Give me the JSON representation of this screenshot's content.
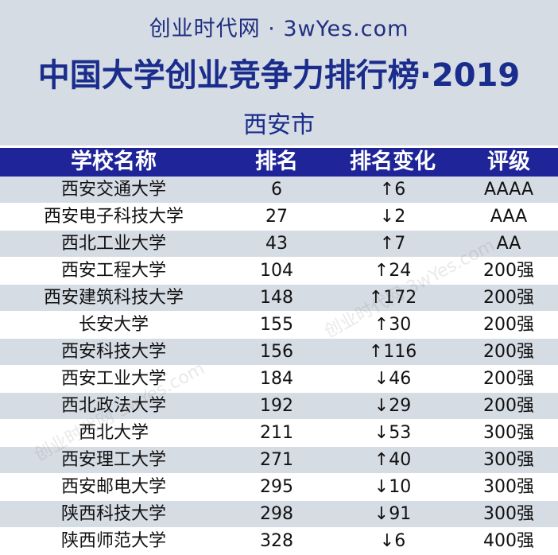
{
  "header": {
    "site": "创业时代网 · 3wYes.com",
    "title": "中国大学创业竞争力排行榜·2019",
    "city": "西安市"
  },
  "table": {
    "columns": [
      "学校名称",
      "排名",
      "排名变化",
      "评级"
    ],
    "rows": [
      {
        "name": "西安交通大学",
        "rank": "6",
        "change": "↑6",
        "grade": "AAAA"
      },
      {
        "name": "西安电子科技大学",
        "rank": "27",
        "change": "↓2",
        "grade": "AAA"
      },
      {
        "name": "西北工业大学",
        "rank": "43",
        "change": "↑7",
        "grade": "AA"
      },
      {
        "name": "西安工程大学",
        "rank": "104",
        "change": "↑24",
        "grade": "200强"
      },
      {
        "name": "西安建筑科技大学",
        "rank": "148",
        "change": "↑172",
        "grade": "200强"
      },
      {
        "name": "长安大学",
        "rank": "155",
        "change": "↑30",
        "grade": "200强"
      },
      {
        "name": "西安科技大学",
        "rank": "156",
        "change": "↑116",
        "grade": "200强"
      },
      {
        "name": "西安工业大学",
        "rank": "184",
        "change": "↓46",
        "grade": "200强"
      },
      {
        "name": "西北政法大学",
        "rank": "192",
        "change": "↓29",
        "grade": "200强"
      },
      {
        "name": "西北大学",
        "rank": "211",
        "change": "↓53",
        "grade": "300强"
      },
      {
        "name": "西安理工大学",
        "rank": "271",
        "change": "↑40",
        "grade": "300强"
      },
      {
        "name": "西安邮电大学",
        "rank": "295",
        "change": "↓10",
        "grade": "300强"
      },
      {
        "name": "陕西科技大学",
        "rank": "298",
        "change": "↓91",
        "grade": "300强"
      },
      {
        "name": "陕西师范大学",
        "rank": "328",
        "change": "↓6",
        "grade": "400强"
      }
    ]
  },
  "watermark": "创业时代网 3wYes.com",
  "colors": {
    "header_bg": "#d6dce4",
    "table_head_bg": "#1f2598",
    "title_text": "#1a2d8c",
    "row_shade": "#d6dce4"
  }
}
